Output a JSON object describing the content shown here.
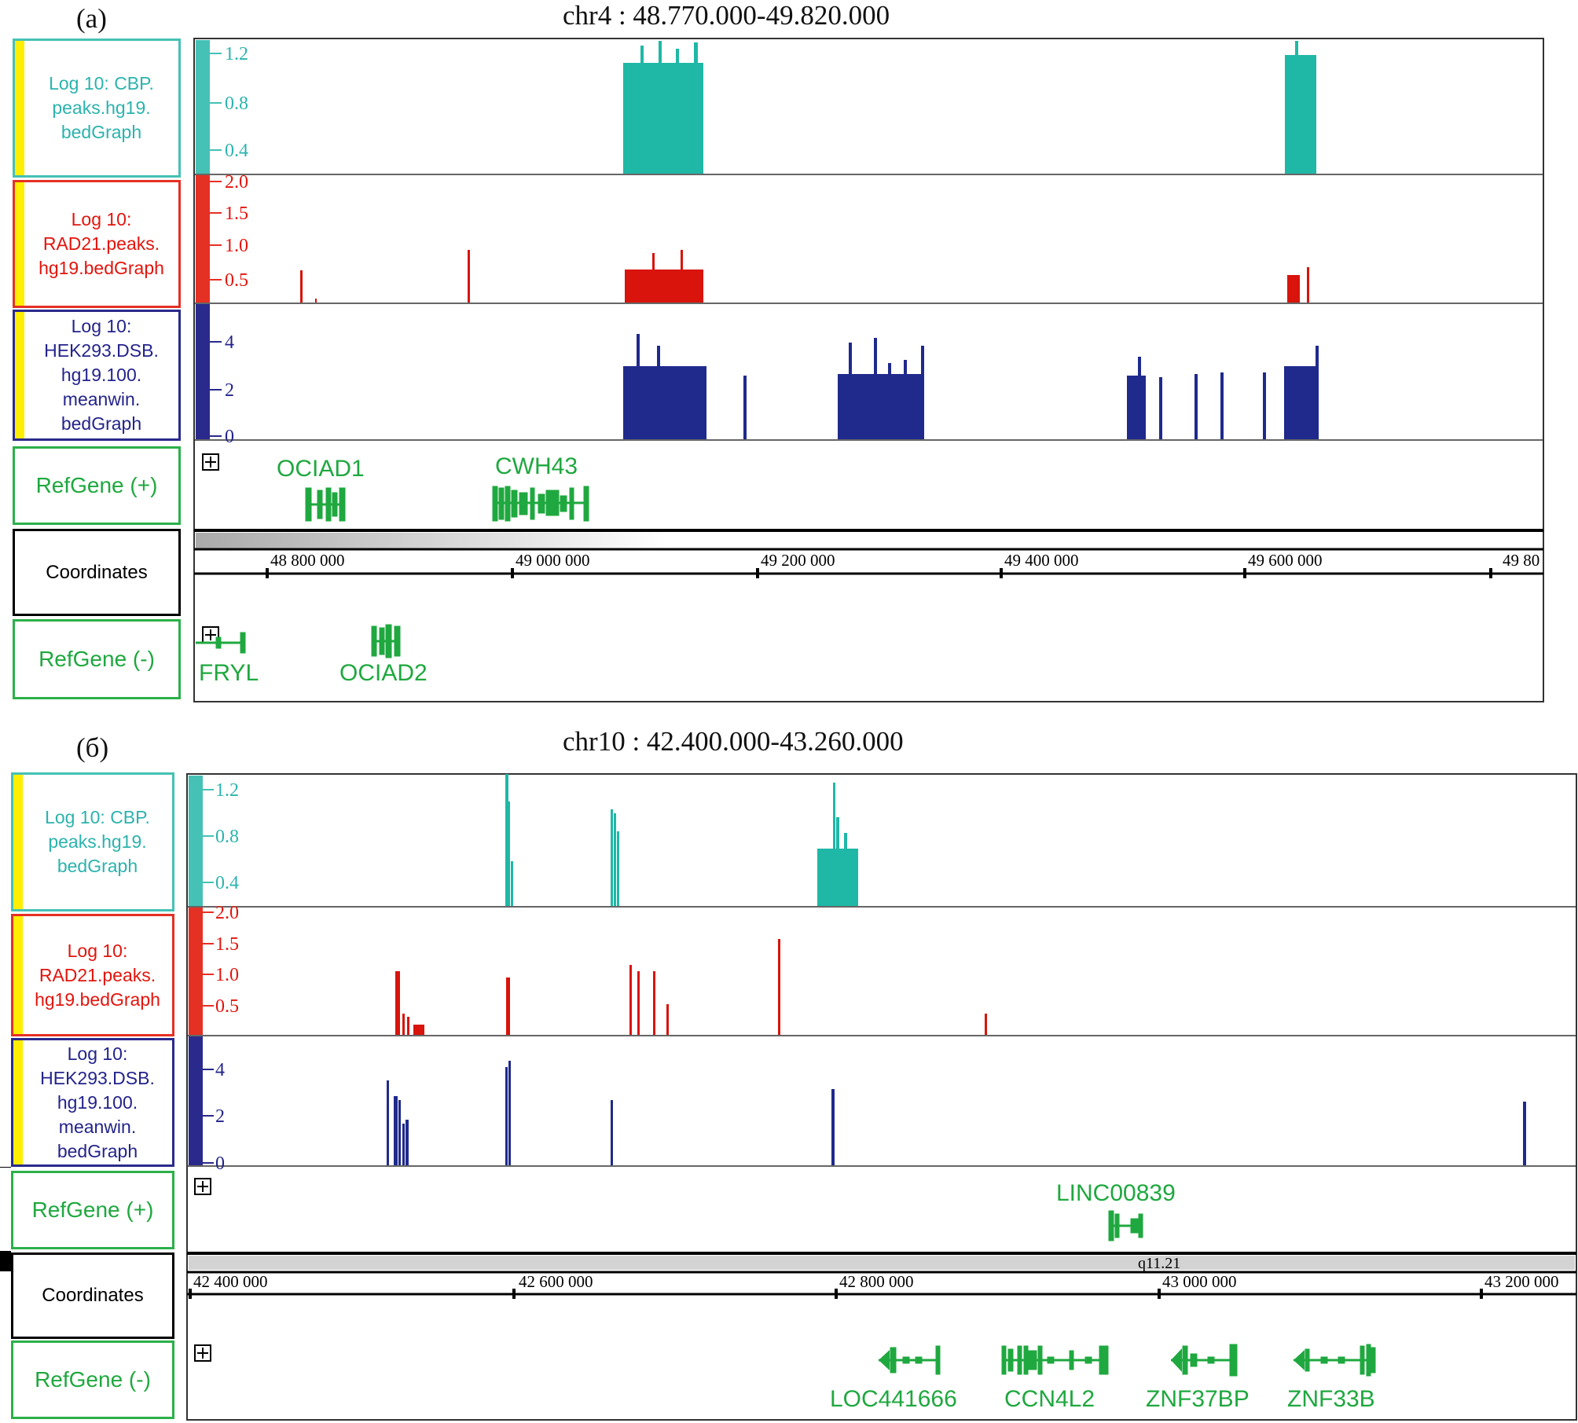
{
  "panels": [
    {
      "id": "a",
      "panel_label": "(а)",
      "region_title": "chr4 : 48.770.000-49.820.000",
      "track_labels": {
        "cbp": "Log 10: CBP.\npeaks.hg19.\nbedGraph",
        "rad21": "Log 10:\nRAD21.peaks.\nhg19.bedGraph",
        "dsb": "Log 10:\nHEK293.DSB.\nhg19.100.\nmeanwin.\nbedGraph",
        "refplus": "RefGene (+)",
        "coord": "Coordinates",
        "refminus": "RefGene (-)"
      },
      "axis_ticks": {
        "cbp": [
          "1.2",
          "0.8",
          "0.4"
        ],
        "rad21": [
          "2.0",
          "1.5",
          "1.0",
          "0.5"
        ],
        "dsb": [
          "4",
          "2",
          "0"
        ]
      },
      "coordinate_ticks": [
        "48 800 000",
        "49 000 000",
        "49 200 000",
        "49 400 000",
        "49 600 000",
        "49 80"
      ],
      "band_label": "",
      "genes_plus": [
        "OCIAD1",
        "CWH43"
      ],
      "genes_minus": [
        "FRYL",
        "OCIAD2"
      ],
      "colors": {
        "cbp": "#1fb8a6",
        "rad21": "#d8140c",
        "dsb": "#1f2a8c",
        "gene": "#1fa83f"
      }
    },
    {
      "id": "b",
      "panel_label": "(б)",
      "region_title": "chr10 : 42.400.000-43.260.000",
      "track_labels": {
        "cbp": "Log 10: CBP.\npeaks.hg19.\nbedGraph",
        "rad21": "Log 10:\nRAD21.peaks.\nhg19.bedGraph",
        "dsb": "Log 10:\nHEK293.DSB.\nhg19.100.\nmeanwin.\nbedGraph",
        "refplus": "RefGene (+)",
        "coord": "Coordinates",
        "refminus": "RefGene (-)"
      },
      "axis_ticks": {
        "cbp": [
          "1.2",
          "0.8",
          "0.4"
        ],
        "rad21": [
          "2.0",
          "1.5",
          "1.0",
          "0.5"
        ],
        "dsb": [
          "4",
          "2",
          "0"
        ]
      },
      "coordinate_ticks": [
        "42 400 000",
        "42 600 000",
        "42 800 000",
        "43 000 000",
        "43 200 000"
      ],
      "band_label": "q11.21",
      "genes_plus": [
        "LINC00839"
      ],
      "genes_minus": [
        "LOC441666",
        "CCN4L2",
        "ZNF37BP",
        "ZNF33B"
      ],
      "colors": {
        "cbp": "#1fb8a6",
        "rad21": "#d8140c",
        "dsb": "#1f2a8c",
        "gene": "#1fa83f"
      }
    }
  ]
}
